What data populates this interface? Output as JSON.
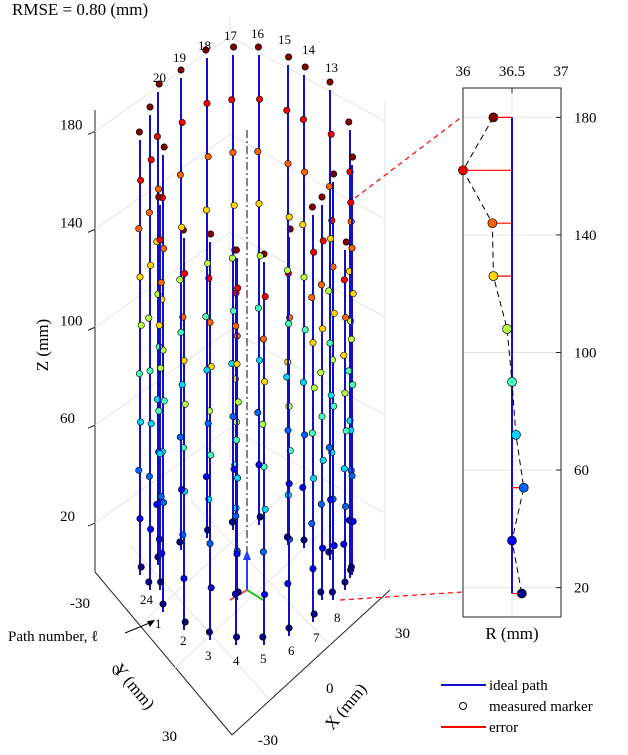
{
  "rmse_label": "RMSE = 0.80 (mm)",
  "chart_data": [
    {
      "type": "scatter",
      "title": "",
      "xlabel": "X (mm)",
      "ylabel": "Y (mm)",
      "zlabel": "Z (mm)",
      "x_ticks": [
        "-30",
        "0",
        "30"
      ],
      "y_ticks": [
        "-30",
        "0",
        "30"
      ],
      "z_ticks": [
        "20",
        "60",
        "100",
        "140",
        "180"
      ],
      "zlim": [
        0,
        190
      ],
      "grid": true,
      "path_number_label": "Path number, ℓ",
      "path_labels": [
        "1",
        "2",
        "3",
        "4",
        "5",
        "6",
        "7",
        "8",
        "13",
        "14",
        "15",
        "16",
        "17",
        "18",
        "19",
        "20",
        "24"
      ],
      "colormap": "jet"
    },
    {
      "type": "line",
      "title": "",
      "xlabel": "R (mm)",
      "x_ticks": [
        "36",
        "36.5",
        "37"
      ],
      "y_ticks": [
        "20",
        "60",
        "100",
        "140",
        "180"
      ],
      "xlim": [
        36,
        37
      ],
      "ylim": [
        10,
        190
      ],
      "ideal_radius": 36.5,
      "series": [
        {
          "name": "measured marker",
          "x": [
            36.31,
            36.0,
            36.3,
            36.31,
            36.45,
            36.5,
            36.54,
            36.62,
            36.5,
            36.6
          ],
          "y": [
            180,
            162,
            144,
            126,
            108,
            90,
            72,
            54,
            36,
            18
          ]
        }
      ]
    }
  ],
  "legend": {
    "ideal_path": "ideal path",
    "measured_marker": "measured marker",
    "error": "error"
  },
  "colors": {
    "ideal_path": "#1010c8",
    "error": "#ff0000",
    "marker_edge": "#000000"
  }
}
